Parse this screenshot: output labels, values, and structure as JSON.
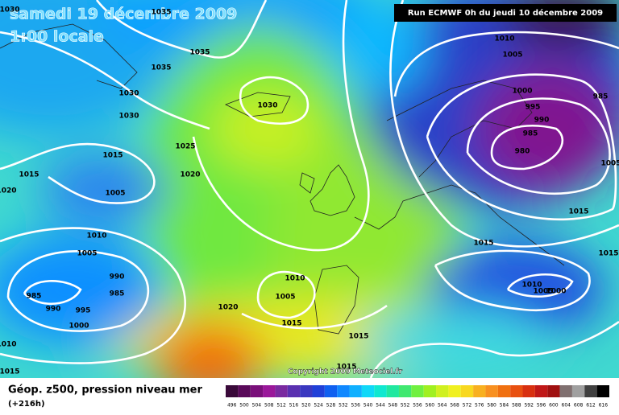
{
  "header": {
    "title": "samedi 19 décembre 2009",
    "subtitle": "1:00 locale",
    "run": "Run ECMWF 0h du jeudi 10 décembre 2009",
    "copyright": "Copyright 2009 Meteociel.fr"
  },
  "footer": {
    "field": "Géop. z500, pression niveau mer",
    "lead": "(+216h)"
  },
  "isobar_labels": [
    1030,
    1035,
    1035,
    1035,
    1030,
    1030,
    1030,
    1025,
    1015,
    1015,
    1020,
    1005,
    1020,
    1010,
    1005,
    990,
    985,
    985,
    990,
    995,
    1000,
    1020,
    1010,
    1005,
    1015,
    1015,
    1015,
    1010,
    1015,
    1010,
    1005,
    1000,
    995,
    990,
    985,
    980,
    985,
    1005,
    1015,
    1015,
    1015,
    1010,
    1005,
    1000
  ],
  "scale": {
    "values": [
      496,
      500,
      504,
      508,
      512,
      516,
      520,
      524,
      528,
      532,
      536,
      540,
      544,
      548,
      552,
      556,
      560,
      564,
      568,
      572,
      576,
      580,
      584,
      588,
      592,
      596,
      600,
      604,
      608,
      612,
      616
    ],
    "colors": [
      "#3a0a3a",
      "#5a0a5a",
      "#7a107a",
      "#9a189a",
      "#7a2aa0",
      "#5a30b0",
      "#3a38c0",
      "#2040d8",
      "#1060f0",
      "#1088ff",
      "#10b0ff",
      "#10d8f8",
      "#10e8d0",
      "#20e8a0",
      "#40e870",
      "#70f040",
      "#a0f020",
      "#d0f020",
      "#f0f020",
      "#f8d820",
      "#f8b020",
      "#f89020",
      "#f07010",
      "#e85010",
      "#d83010",
      "#c01818",
      "#a01010",
      "#807070",
      "#a0a0a0",
      "#404040",
      "#000000"
    ]
  }
}
